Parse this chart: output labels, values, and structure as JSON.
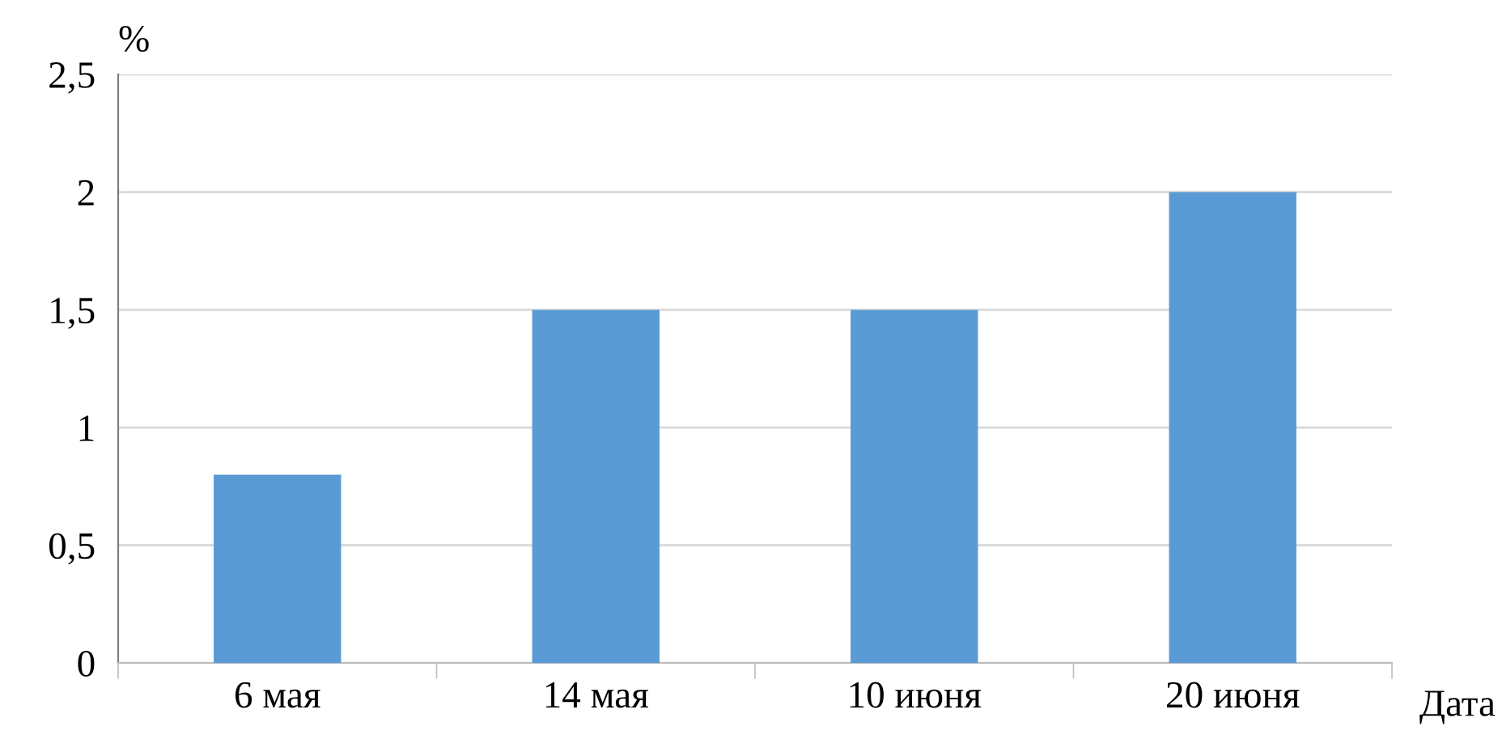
{
  "chart_data": {
    "type": "bar",
    "xlabel": "Дата",
    "ylabel": "%",
    "categories": [
      "6 мая",
      "14 мая",
      "10 июня",
      "20 июня"
    ],
    "values": [
      0.8,
      1.5,
      1.5,
      2
    ],
    "color": "#5b9bd5",
    "ylim": [
      0,
      2.5
    ],
    "yticks": [
      0,
      {
        "value": 0.5,
        "label": "0,5"
      },
      1,
      {
        "value": 1.5,
        "label": "1,5"
      },
      2,
      {
        "value": 2.5,
        "label": "2,5"
      }
    ],
    "grid": "y"
  }
}
